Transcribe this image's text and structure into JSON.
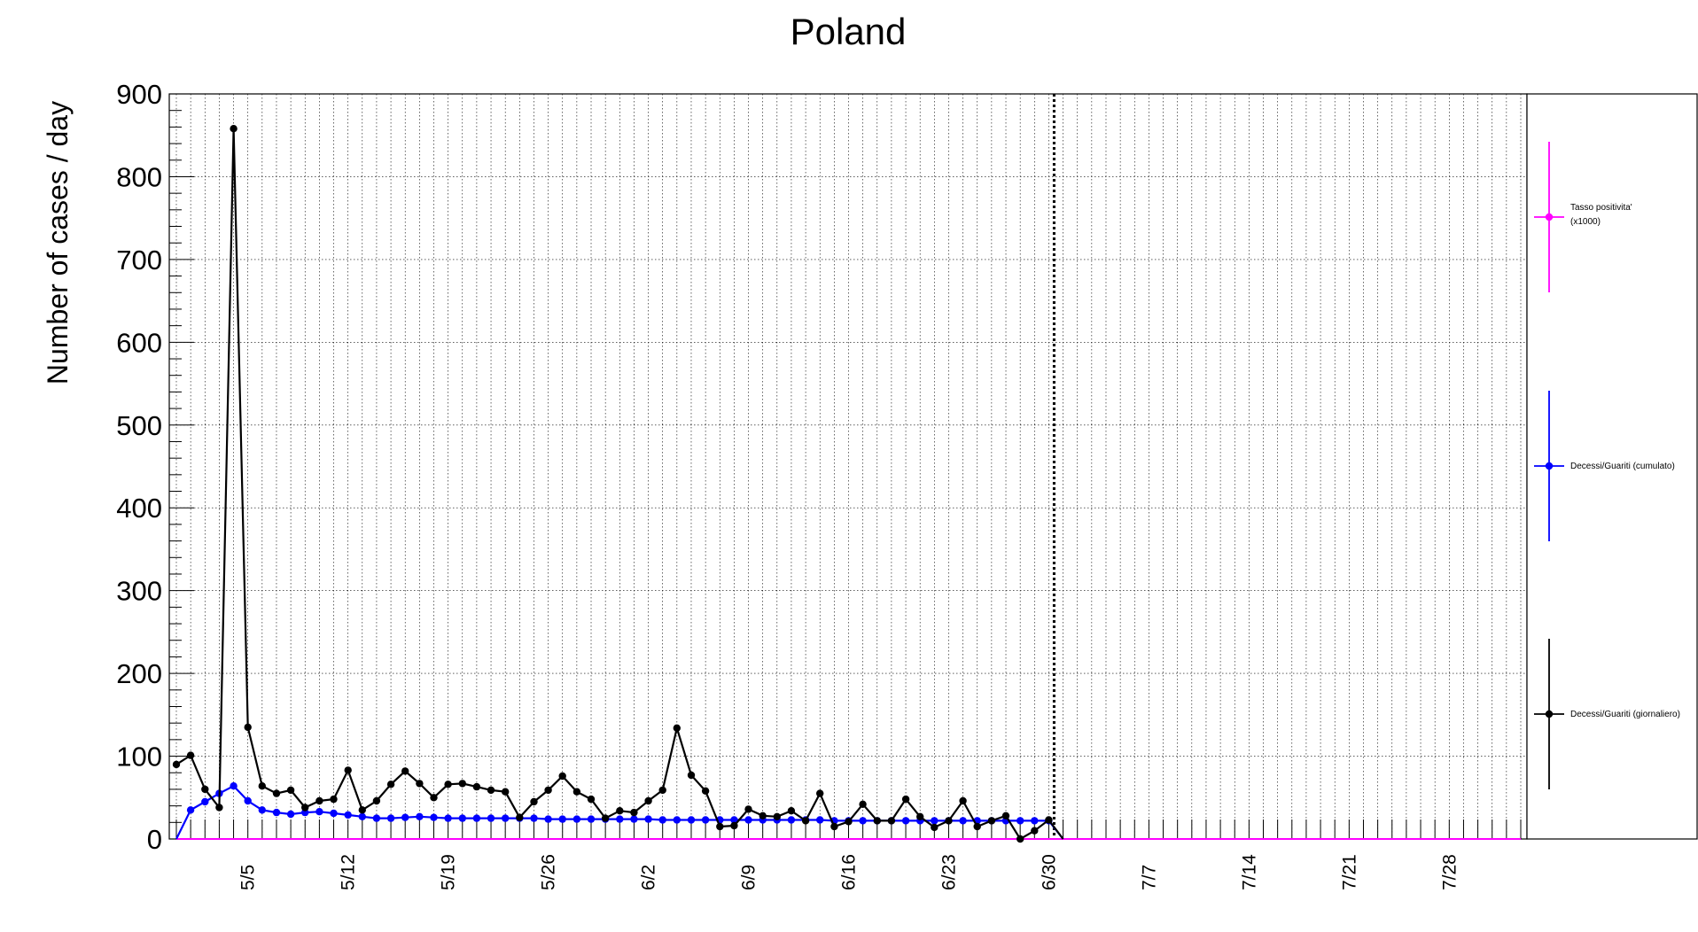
{
  "chart_data": {
    "type": "line",
    "title": "Poland",
    "ylabel": "Number of cases / day",
    "xlabel": "",
    "ylim": [
      0,
      900
    ],
    "yticks": [
      0,
      100,
      200,
      300,
      400,
      500,
      600,
      700,
      800,
      900
    ],
    "x_tick_labels": [
      "5/5",
      "5/12",
      "5/19",
      "5/26",
      "6/2",
      "6/9",
      "6/16",
      "6/23",
      "6/30",
      "7/7",
      "7/14",
      "7/21",
      "7/28"
    ],
    "x_range": [
      "4/30",
      "8/2"
    ],
    "grid": true,
    "marker_line_date": "6/30",
    "legend_position": "right",
    "series": [
      {
        "name": "Tasso positivita' (x1000)",
        "color": "#ff00ff",
        "x": [
          "4/30",
          "5/1",
          "5/2",
          "5/3",
          "5/4",
          "5/5",
          "5/6",
          "5/7",
          "5/8",
          "5/9",
          "5/10",
          "5/11",
          "5/12",
          "5/13",
          "5/14",
          "5/15",
          "5/16",
          "5/17",
          "5/18",
          "5/19",
          "5/20",
          "5/21",
          "5/22",
          "5/23",
          "5/24",
          "5/25",
          "5/26",
          "5/27",
          "5/28",
          "5/29",
          "5/30",
          "5/31",
          "6/1",
          "6/2",
          "6/3",
          "6/4",
          "6/5",
          "6/6",
          "6/7",
          "6/8",
          "6/9",
          "6/10",
          "6/11",
          "6/12",
          "6/13",
          "6/14",
          "6/15",
          "6/16",
          "6/17",
          "6/18",
          "6/19",
          "6/20",
          "6/21",
          "6/22",
          "6/23",
          "6/24",
          "6/25",
          "6/26",
          "6/27",
          "6/28",
          "6/29",
          "6/30",
          "7/1",
          "7/2",
          "7/3",
          "7/4",
          "7/5",
          "7/6",
          "7/7",
          "7/8",
          "7/9",
          "7/10",
          "7/11",
          "7/12",
          "7/13",
          "7/14",
          "7/15",
          "7/16",
          "7/17",
          "7/18",
          "7/19",
          "7/20",
          "7/21",
          "7/22",
          "7/23",
          "7/24",
          "7/25",
          "7/26",
          "7/27",
          "7/28",
          "7/29",
          "7/30",
          "7/31",
          "8/1",
          "8/2"
        ],
        "values": [
          0,
          0,
          0,
          0,
          0,
          0,
          0,
          0,
          0,
          0,
          0,
          0,
          0,
          0,
          0,
          0,
          0,
          0,
          0,
          0,
          0,
          0,
          0,
          0,
          0,
          0,
          0,
          0,
          0,
          0,
          0,
          0,
          0,
          0,
          0,
          0,
          0,
          0,
          0,
          0,
          0,
          0,
          0,
          0,
          0,
          0,
          0,
          0,
          0,
          0,
          0,
          0,
          0,
          0,
          0,
          0,
          0,
          0,
          0,
          0,
          0,
          0,
          0,
          0,
          0,
          0,
          0,
          0,
          0,
          0,
          0,
          0,
          0,
          0,
          0,
          0,
          0,
          0,
          0,
          0,
          0,
          0,
          0,
          0,
          0,
          0,
          0,
          0,
          0,
          0,
          0,
          0,
          0,
          0,
          0
        ]
      },
      {
        "name": "Decessi/Guariti (cumulato)",
        "color": "#0000ff",
        "x": [
          "4/30",
          "5/1",
          "5/2",
          "5/3",
          "5/4",
          "5/5",
          "5/6",
          "5/7",
          "5/8",
          "5/9",
          "5/10",
          "5/11",
          "5/12",
          "5/13",
          "5/14",
          "5/15",
          "5/16",
          "5/17",
          "5/18",
          "5/19",
          "5/20",
          "5/21",
          "5/22",
          "5/23",
          "5/24",
          "5/25",
          "5/26",
          "5/27",
          "5/28",
          "5/29",
          "5/30",
          "5/31",
          "6/1",
          "6/2",
          "6/3",
          "6/4",
          "6/5",
          "6/6",
          "6/7",
          "6/8",
          "6/9",
          "6/10",
          "6/11",
          "6/12",
          "6/13",
          "6/14",
          "6/15",
          "6/16",
          "6/17",
          "6/18",
          "6/19",
          "6/20",
          "6/21",
          "6/22",
          "6/23",
          "6/24",
          "6/25",
          "6/26",
          "6/27",
          "6/28",
          "6/29",
          "6/30",
          "7/1"
        ],
        "values": [
          0,
          35,
          45,
          55,
          64,
          46,
          35,
          32,
          30,
          32,
          33,
          31,
          29,
          27,
          25,
          25,
          26,
          27,
          26,
          25,
          25,
          25,
          25,
          25,
          25,
          25,
          24,
          24,
          24,
          24,
          24,
          24,
          24,
          24,
          23,
          23,
          23,
          23,
          23,
          23,
          23,
          23,
          23,
          23,
          23,
          23,
          22,
          22,
          22,
          22,
          22,
          22,
          22,
          22,
          22,
          22,
          22,
          22,
          22,
          22,
          22,
          22,
          0
        ],
        "markers_on": [
          "5/1",
          "5/2",
          "5/3",
          "5/4",
          "5/5",
          "5/6",
          "5/7",
          "5/8",
          "5/9",
          "5/10",
          "5/11",
          "5/12",
          "5/13",
          "5/14",
          "5/15",
          "5/16",
          "5/17",
          "5/18",
          "5/19",
          "5/20",
          "5/21",
          "5/22",
          "5/23",
          "5/24",
          "5/25",
          "5/26",
          "5/27",
          "5/28",
          "5/29",
          "5/30",
          "5/31",
          "6/1",
          "6/2",
          "6/3",
          "6/4",
          "6/5",
          "6/6",
          "6/7",
          "6/8",
          "6/9",
          "6/10",
          "6/11",
          "6/12",
          "6/13",
          "6/14",
          "6/15",
          "6/16",
          "6/17",
          "6/18",
          "6/19",
          "6/20",
          "6/21",
          "6/22",
          "6/23",
          "6/24",
          "6/25",
          "6/26",
          "6/27",
          "6/28",
          "6/29",
          "6/30"
        ]
      },
      {
        "name": "Decessi/Guariti (giornaliero)",
        "color": "#000000",
        "x": [
          "4/30",
          "5/1",
          "5/2",
          "5/3",
          "5/4",
          "5/5",
          "5/6",
          "5/7",
          "5/8",
          "5/9",
          "5/10",
          "5/11",
          "5/12",
          "5/13",
          "5/14",
          "5/15",
          "5/16",
          "5/17",
          "5/18",
          "5/19",
          "5/20",
          "5/21",
          "5/22",
          "5/23",
          "5/24",
          "5/25",
          "5/26",
          "5/27",
          "5/28",
          "5/29",
          "5/30",
          "5/31",
          "6/1",
          "6/2",
          "6/3",
          "6/4",
          "6/5",
          "6/6",
          "6/7",
          "6/8",
          "6/9",
          "6/10",
          "6/11",
          "6/12",
          "6/13",
          "6/14",
          "6/15",
          "6/16",
          "6/17",
          "6/18",
          "6/19",
          "6/20",
          "6/21",
          "6/22",
          "6/23",
          "6/24",
          "6/25",
          "6/26",
          "6/27",
          "6/28",
          "6/29",
          "6/30",
          "7/1"
        ],
        "values": [
          90,
          101,
          60,
          38,
          858,
          135,
          64,
          55,
          59,
          38,
          46,
          48,
          83,
          35,
          46,
          66,
          82,
          67,
          50,
          66,
          67,
          63,
          59,
          57,
          26,
          45,
          59,
          76,
          57,
          48,
          25,
          34,
          32,
          46,
          59,
          134,
          77,
          58,
          15,
          16,
          36,
          28,
          27,
          34,
          22,
          55,
          15,
          21,
          42,
          22,
          22,
          48,
          27,
          14,
          22,
          46,
          15,
          22,
          28,
          0,
          10,
          23,
          0
        ],
        "markers_on": [
          "4/30",
          "5/1",
          "5/2",
          "5/3",
          "5/4",
          "5/5",
          "5/6",
          "5/7",
          "5/8",
          "5/9",
          "5/10",
          "5/11",
          "5/12",
          "5/13",
          "5/14",
          "5/15",
          "5/16",
          "5/17",
          "5/18",
          "5/19",
          "5/20",
          "5/21",
          "5/22",
          "5/23",
          "5/24",
          "5/25",
          "5/26",
          "5/27",
          "5/28",
          "5/29",
          "5/30",
          "5/31",
          "6/1",
          "6/2",
          "6/3",
          "6/4",
          "6/5",
          "6/6",
          "6/7",
          "6/8",
          "6/9",
          "6/10",
          "6/11",
          "6/12",
          "6/13",
          "6/14",
          "6/15",
          "6/16",
          "6/17",
          "6/18",
          "6/19",
          "6/20",
          "6/21",
          "6/22",
          "6/23",
          "6/24",
          "6/25",
          "6/26",
          "6/27",
          "6/28",
          "6/29",
          "6/30"
        ]
      }
    ],
    "legend": {
      "entries": [
        {
          "label": "Tasso positivita'",
          "label2": "(x1000)",
          "color": "#ff00ff"
        },
        {
          "label": "Decessi/Guariti (cumulato)",
          "label2": "",
          "color": "#0000ff"
        },
        {
          "label": "Decessi/Guariti (giornaliero)",
          "label2": "",
          "color": "#000000"
        }
      ]
    }
  }
}
